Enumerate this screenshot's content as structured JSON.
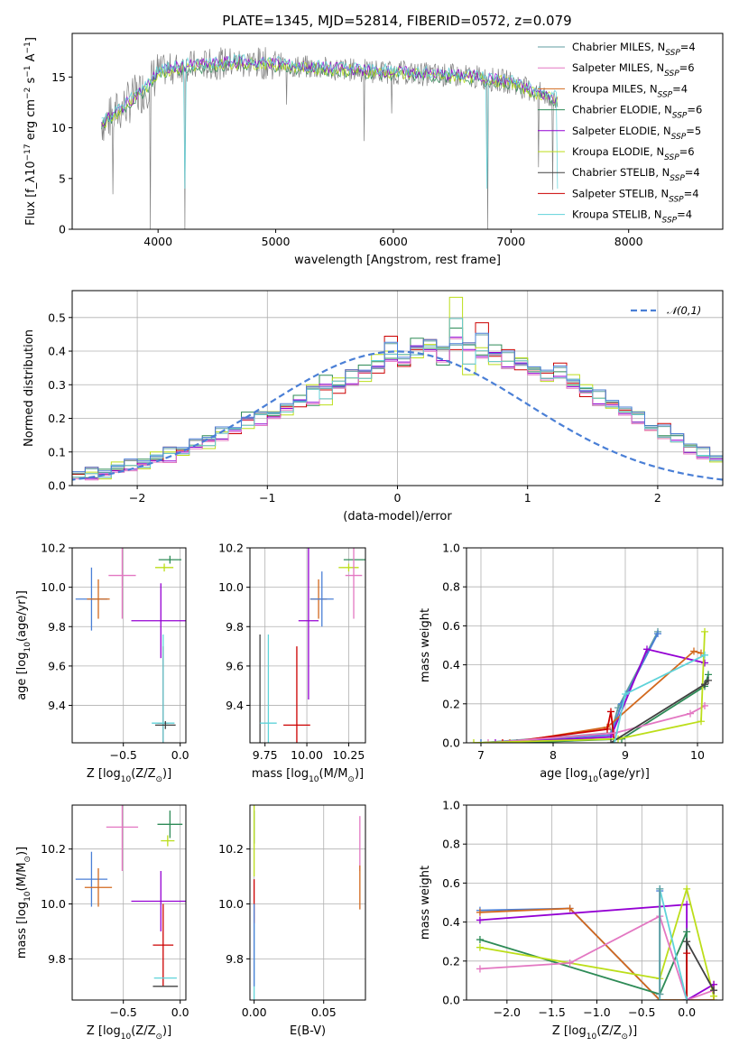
{
  "title": "PLATE=1345, MJD=52814, FIBERID=0572, z=0.079",
  "colors": {
    "chabrier_miles": "#5f9ea0",
    "salpeter_miles": "#e377c2",
    "kroupa_miles": "#d2691e",
    "chabrier_elodie": "#2e8b57",
    "salpeter_elodie": "#9400d3",
    "kroupa_elodie": "#bcde1a",
    "chabrier_stelib": "#404040",
    "salpeter_stelib": "#cc0000",
    "kroupa_stelib": "#5fd3d9",
    "extra_blue": "#4a7fd6",
    "data_gray": "#808080",
    "normal_dashed": "#4a7fd6"
  },
  "chart_data": [
    {
      "id": "spectrum",
      "type": "line",
      "title": "PLATE=1345, MJD=52814, FIBERID=0572, z=0.079",
      "xlabel": "wavelength [Angstrom, rest frame]",
      "ylabel": "Flux [f_λ10^-17 erg cm^-2 s^-1 A^-1]",
      "xlim": [
        3270,
        8800
      ],
      "ylim": [
        0,
        19.3
      ],
      "xticks": [
        "4000",
        "5000",
        "6000",
        "7000",
        "8000"
      ],
      "yticks": [
        "0",
        "5",
        "10",
        "15"
      ],
      "legend_position": "top-right",
      "series": [
        {
          "name": "Chabrier MILES, N_SSP=4"
        },
        {
          "name": "Salpeter MILES, N_SSP=6"
        },
        {
          "name": "Kroupa MILES, N_SSP=4"
        },
        {
          "name": "Chabrier ELODIE, N_SSP=6"
        },
        {
          "name": "Salpeter ELODIE, N_SSP=5"
        },
        {
          "name": "Kroupa ELODIE, N_SSP=6"
        },
        {
          "name": "Chabrier STELIB, N_SSP=4"
        },
        {
          "name": "Salpeter STELIB, N_SSP=4"
        },
        {
          "name": "Kroupa STELIB, N_SSP=4"
        }
      ],
      "continuum_points": {
        "x": [
          3520,
          3600,
          3700,
          3800,
          3900,
          4000,
          4200,
          4400,
          4600,
          4800,
          5000,
          5200,
          5500,
          5800,
          6100,
          6400,
          6700,
          7000,
          7200,
          7400
        ],
        "y": [
          10.5,
          11.0,
          12.0,
          13.0,
          14.0,
          15.5,
          16.0,
          16.2,
          16.4,
          16.4,
          16.3,
          16.0,
          15.8,
          15.6,
          15.4,
          15.2,
          15.0,
          14.5,
          13.5,
          12.8
        ]
      },
      "absorption_lines": [
        {
          "x": 3934,
          "y": 0
        },
        {
          "x": 4227,
          "y": 0
        },
        {
          "x": 6800,
          "y": 0
        },
        {
          "x": 7400,
          "y": 0
        }
      ]
    },
    {
      "id": "residuals",
      "type": "histogram",
      "xlabel": "(data-model)/error",
      "ylabel": "Normed distribution",
      "xlim": [
        -2.5,
        2.5
      ],
      "ylim": [
        0,
        0.58
      ],
      "xticks": [
        "−2",
        "−1",
        "0",
        "1",
        "2"
      ],
      "yticks": [
        "0.0",
        "0.1",
        "0.2",
        "0.3",
        "0.4",
        "0.5"
      ],
      "legend": "𝒩(0,1)",
      "legend_position": "top-right",
      "bin_width": 0.1,
      "bin_start": -2.6,
      "series_base": [
        0.02,
        0.025,
        0.03,
        0.03,
        0.05,
        0.06,
        0.06,
        0.08,
        0.09,
        0.1,
        0.12,
        0.13,
        0.15,
        0.17,
        0.19,
        0.2,
        0.21,
        0.23,
        0.25,
        0.27,
        0.28,
        0.3,
        0.32,
        0.33,
        0.35,
        0.38,
        0.39,
        0.4,
        0.41,
        0.4,
        0.42,
        0.4,
        0.39,
        0.38,
        0.37,
        0.36,
        0.34,
        0.33,
        0.32,
        0.3,
        0.28,
        0.26,
        0.24,
        0.22,
        0.2,
        0.17,
        0.15,
        0.13,
        0.11,
        0.09,
        0.08,
        0.06,
        0.05,
        0.04,
        0.035,
        0.03
      ],
      "series_deltas": [
        [
          0.0,
          0.01,
          -0.005,
          0.02,
          0.0,
          -0.01,
          0.02,
          0.0,
          -0.02,
          0.01,
          0.0,
          0.02,
          -0.01,
          0.0,
          0.03,
          -0.02,
          0.0,
          0.01,
          0.02,
          -0.03,
          0.05,
          0.0,
          -0.02,
          0.03,
          0.02,
          0.0,
          -0.03,
          0.04,
          0.0,
          -0.04,
          0.05,
          0.02,
          0.0,
          0.04,
          -0.02,
          0.02,
          0.0,
          -0.01,
          0.02,
          0.0,
          0.01,
          -0.02,
          0.01,
          0.0,
          -0.01,
          0.01,
          0.0,
          0.02,
          -0.01,
          0.0,
          0.01,
          0.0,
          -0.005,
          0.0,
          0.005,
          0.0
        ],
        [
          0.005,
          0.0,
          0.01,
          -0.01,
          0.02,
          0.0,
          -0.01,
          0.02,
          0.01,
          -0.01,
          0.0,
          -0.02,
          0.01,
          0.0,
          -0.02,
          0.02,
          0.01,
          -0.02,
          0.0,
          0.03,
          -0.04,
          0.02,
          0.0,
          -0.02,
          0.04,
          0.02,
          0.0,
          -0.02,
          0.01,
          0.01,
          0.14,
          -0.07,
          0.02,
          -0.02,
          0.0,
          0.02,
          0.01,
          -0.02,
          0.0,
          0.03,
          0.02,
          0.0,
          -0.01,
          0.0,
          0.02,
          0.0,
          -0.01,
          0.0,
          0.01,
          0.0,
          -0.01,
          0.0,
          0.005,
          0.0,
          0.0,
          0.005
        ],
        [
          -0.01,
          0.005,
          0.02,
          0.0,
          -0.01,
          0.01,
          0.0,
          -0.01,
          0.02,
          0.0,
          0.01,
          0.0,
          0.02,
          -0.02,
          0.0,
          0.01,
          -0.01,
          0.0,
          -0.02,
          0.02,
          0.0,
          -0.03,
          0.02,
          0.0,
          -0.02,
          0.06,
          -0.04,
          0.0,
          0.02,
          0.0,
          -0.02,
          0.02,
          0.09,
          0.0,
          0.03,
          -0.02,
          0.0,
          0.0,
          0.04,
          0.0,
          -0.02,
          0.02,
          0.0,
          0.0,
          0.01,
          -0.01,
          0.03,
          0.02,
          0.0,
          0.02,
          -0.01,
          0.01,
          0.0,
          0.0,
          -0.005,
          0.0
        ]
      ],
      "normal_curve": {
        "mean": 0,
        "sigma": 1
      }
    },
    {
      "id": "age_vs_Z",
      "type": "scatter",
      "xlabel": "Z [log10(Z/Z⊙)]",
      "ylabel": "age  [log10(age/yr)]",
      "xlim": [
        -0.95,
        0.05
      ],
      "ylim": [
        9.21,
        10.2
      ],
      "xticks": [
        "−0.5",
        "0.0"
      ],
      "yticks": [
        "9.4",
        "9.6",
        "9.8",
        "10.0",
        "10.2"
      ],
      "points": [
        {
          "c": "extra_blue",
          "x": -0.78,
          "y": 9.94,
          "xerr": 0.14,
          "yerr": 0.16
        },
        {
          "c": "kroupa_miles",
          "x": -0.72,
          "y": 9.94,
          "xerr": 0.1,
          "yerr": 0.1
        },
        {
          "c": "salpeter_miles",
          "x": -0.51,
          "y": 10.06,
          "xerr": 0.12,
          "yerr": 0.22
        },
        {
          "c": "salpeter_elodie",
          "x": -0.17,
          "y": 9.83,
          "xerr": 0.26,
          "yerr": 0.19
        },
        {
          "c": "chabrier_elodie",
          "x": -0.09,
          "y": 10.14,
          "xerr": 0.1,
          "yerr": 0.02
        },
        {
          "c": "kroupa_elodie",
          "x": -0.14,
          "y": 10.1,
          "xerr": 0.08,
          "yerr": 0.02
        },
        {
          "c": "salpeter_stelib",
          "x": -0.15,
          "y": 9.31,
          "xerr": 0.05,
          "yerr": 0.39
        },
        {
          "c": "kroupa_stelib",
          "x": -0.15,
          "y": 9.31,
          "xerr": 0.1,
          "yerr": 0.45
        },
        {
          "c": "chabrier_stelib",
          "x": -0.13,
          "y": 9.3,
          "xerr": 0.09,
          "yerr": 0.02
        }
      ]
    },
    {
      "id": "age_vs_mass",
      "type": "scatter",
      "xlabel": "mass [log10(M/M⊙)]",
      "ylabel": "",
      "xlim": [
        9.66,
        10.35
      ],
      "ylim": [
        9.21,
        10.2
      ],
      "xticks": [
        "9.75",
        "10.00",
        "10.25"
      ],
      "yticks": [
        "9.4",
        "9.6",
        "9.8",
        "10.0",
        "10.2"
      ],
      "points": [
        {
          "c": "chabrier_stelib",
          "x": 9.72,
          "y": 9.31,
          "xerr": 0.0,
          "yerr": 0.45
        },
        {
          "c": "kroupa_stelib",
          "x": 9.77,
          "y": 9.31,
          "xerr": 0.05,
          "yerr": 0.45
        },
        {
          "c": "salpeter_stelib",
          "x": 9.94,
          "y": 9.3,
          "xerr": 0.08,
          "yerr": 0.4
        },
        {
          "c": "salpeter_elodie",
          "x": 10.01,
          "y": 9.83,
          "xerr": 0.06,
          "yerr": 0.4
        },
        {
          "c": "kroupa_miles",
          "x": 10.07,
          "y": 9.94,
          "xerr": 0.05,
          "yerr": 0.1
        },
        {
          "c": "extra_blue",
          "x": 10.09,
          "y": 9.94,
          "xerr": 0.07,
          "yerr": 0.14
        },
        {
          "c": "chabrier_elodie",
          "x": 10.29,
          "y": 10.14,
          "xerr": 0.07,
          "yerr": 0.0
        },
        {
          "c": "kroupa_elodie",
          "x": 10.25,
          "y": 10.1,
          "xerr": 0.06,
          "yerr": 0.02
        },
        {
          "c": "salpeter_miles",
          "x": 10.28,
          "y": 10.06,
          "xerr": 0.05,
          "yerr": 0.22
        }
      ]
    },
    {
      "id": "massweight_vs_age",
      "type": "line",
      "xlabel": "age  [log10(age/yr)]",
      "ylabel": "mass weight",
      "xlim": [
        6.8,
        10.35
      ],
      "ylim": [
        0,
        1.0
      ],
      "xticks": [
        "7",
        "8",
        "9",
        "10"
      ],
      "yticks": [
        "0.0",
        "0.2",
        "0.4",
        "0.6",
        "0.8",
        "1.0"
      ],
      "series": [
        {
          "c": "chabrier_miles",
          "x": [
            7.0,
            8.8,
            8.9,
            9.45
          ],
          "y": [
            0.0,
            0.05,
            0.18,
            0.57
          ]
        },
        {
          "c": "extra_blue",
          "x": [
            7.0,
            8.8,
            8.95,
            9.45
          ],
          "y": [
            0.0,
            0.04,
            0.2,
            0.56
          ]
        },
        {
          "c": "salpeter_elodie",
          "x": [
            7.2,
            8.8,
            9.3,
            10.1
          ],
          "y": [
            0.0,
            0.03,
            0.48,
            0.41
          ]
        },
        {
          "c": "kroupa_miles",
          "x": [
            7.4,
            8.75,
            9.95,
            10.05
          ],
          "y": [
            0.0,
            0.08,
            0.47,
            0.46
          ]
        },
        {
          "c": "salpeter_stelib",
          "x": [
            7.3,
            8.75,
            8.8,
            8.85
          ],
          "y": [
            0.0,
            0.07,
            0.16,
            0.0
          ]
        },
        {
          "c": "chabrier_elodie",
          "x": [
            7.5,
            8.95,
            10.1,
            10.15
          ],
          "y": [
            0.0,
            0.02,
            0.29,
            0.35
          ]
        },
        {
          "c": "salpeter_miles",
          "x": [
            7.1,
            8.85,
            9.9,
            10.1
          ],
          "y": [
            0.0,
            0.05,
            0.15,
            0.19
          ]
        },
        {
          "c": "kroupa_elodie",
          "x": [
            6.9,
            8.9,
            10.05,
            10.1
          ],
          "y": [
            0.0,
            0.02,
            0.11,
            0.57
          ]
        },
        {
          "c": "chabrier_stelib",
          "x": [
            8.8,
            10.1,
            10.15
          ],
          "y": [
            0.0,
            0.3,
            0.32
          ]
        },
        {
          "c": "kroupa_stelib",
          "x": [
            8.85,
            9.0,
            10.1
          ],
          "y": [
            0.0,
            0.25,
            0.45
          ]
        }
      ]
    },
    {
      "id": "mass_vs_Z",
      "type": "scatter",
      "xlabel": "Z [log10(Z/Z⊙)]",
      "ylabel": "mass [log10(M/M⊙)]",
      "xlim": [
        -0.95,
        0.05
      ],
      "ylim": [
        9.65,
        10.36
      ],
      "xticks": [
        "−0.5",
        "0.0"
      ],
      "yticks": [
        "9.8",
        "10.0",
        "10.2"
      ],
      "points": [
        {
          "c": "extra_blue",
          "x": -0.78,
          "y": 10.09,
          "xerr": 0.14,
          "yerr": 0.1
        },
        {
          "c": "kroupa_miles",
          "x": -0.72,
          "y": 10.06,
          "xerr": 0.12,
          "yerr": 0.07
        },
        {
          "c": "salpeter_miles",
          "x": -0.51,
          "y": 10.28,
          "xerr": 0.14,
          "yerr": 0.16
        },
        {
          "c": "salpeter_elodie",
          "x": -0.17,
          "y": 10.01,
          "xerr": 0.26,
          "yerr": 0.11
        },
        {
          "c": "chabrier_elodie",
          "x": -0.09,
          "y": 10.29,
          "xerr": 0.11,
          "yerr": 0.05
        },
        {
          "c": "kroupa_elodie",
          "x": -0.11,
          "y": 10.23,
          "xerr": 0.06,
          "yerr": 0.02
        },
        {
          "c": "salpeter_stelib",
          "x": -0.15,
          "y": 9.85,
          "xerr": 0.09,
          "yerr": 0.15
        },
        {
          "c": "kroupa_stelib",
          "x": -0.13,
          "y": 9.73,
          "xerr": 0.1,
          "yerr": 0.0
        },
        {
          "c": "chabrier_stelib",
          "x": -0.13,
          "y": 9.7,
          "xerr": 0.11,
          "yerr": 0.0
        }
      ]
    },
    {
      "id": "mass_vs_EBV",
      "type": "scatter",
      "xlabel": "E(B-V)",
      "ylabel": "",
      "xlim": [
        -0.003,
        0.08
      ],
      "ylim": [
        9.65,
        10.36
      ],
      "xticks": [
        "0.00",
        "0.05"
      ],
      "yticks": [
        "9.8",
        "10.0",
        "10.2"
      ],
      "points": [
        {
          "c": "chabrier_elodie",
          "x": 0.0,
          "y": 10.28,
          "xerr": 0.0,
          "yerr": 0.06
        },
        {
          "c": "kroupa_elodie",
          "x": 0.0,
          "y": 10.23,
          "xerr": 0.0,
          "yerr": 0.13
        },
        {
          "c": "salpeter_stelib",
          "x": 0.0,
          "y": 10.01,
          "xerr": 0.0,
          "yerr": 0.08
        },
        {
          "c": "kroupa_stelib",
          "x": 0.0,
          "y": 9.73,
          "xerr": 0.0,
          "yerr": 0.2
        },
        {
          "c": "extra_blue",
          "x": 0.0,
          "y": 9.85,
          "xerr": 0.0,
          "yerr": 0.15
        },
        {
          "c": "salpeter_miles",
          "x": 0.076,
          "y": 10.22,
          "xerr": 0.0,
          "yerr": 0.1
        },
        {
          "c": "kroupa_miles",
          "x": 0.076,
          "y": 10.06,
          "xerr": 0.0,
          "yerr": 0.08
        }
      ]
    },
    {
      "id": "massweight_vs_Z",
      "type": "line",
      "xlabel": "Z [log10(Z/Z⊙)]",
      "ylabel": "mass weight",
      "xlim": [
        -2.45,
        0.4
      ],
      "ylim": [
        0,
        1.0
      ],
      "xticks": [
        "−2.0",
        "−1.5",
        "−1.0",
        "−0.5",
        "0.0"
      ],
      "yticks": [
        "0.0",
        "0.2",
        "0.4",
        "0.6",
        "0.8",
        "1.0"
      ],
      "series": [
        {
          "c": "extra_blue",
          "x": [
            -2.3,
            -1.3,
            -0.3,
            -0.3
          ],
          "y": [
            0.46,
            0.47,
            0.0,
            0.56
          ]
        },
        {
          "c": "kroupa_miles",
          "x": [
            -2.3,
            -1.3,
            -0.3,
            0.3,
            0.3
          ],
          "y": [
            0.45,
            0.47,
            0.0,
            0.0,
            0.08
          ]
        },
        {
          "c": "salpeter_elodie",
          "x": [
            -2.3,
            0.0,
            0.0,
            0.3
          ],
          "y": [
            0.41,
            0.49,
            0.0,
            0.08
          ]
        },
        {
          "c": "chabrier_elodie",
          "x": [
            -2.3,
            -0.3,
            0.0,
            0.0
          ],
          "y": [
            0.31,
            0.03,
            0.35,
            0.0
          ]
        },
        {
          "c": "kroupa_elodie",
          "x": [
            -2.3,
            -0.3,
            0.0,
            0.3
          ],
          "y": [
            0.27,
            0.11,
            0.57,
            0.02
          ]
        },
        {
          "c": "salpeter_miles",
          "x": [
            -2.3,
            -1.3,
            -0.3,
            0.0,
            0.3
          ],
          "y": [
            0.16,
            0.19,
            0.43,
            0.0,
            0.05
          ]
        },
        {
          "c": "chabrier_stelib",
          "x": [
            0.0,
            0.0,
            0.3
          ],
          "y": [
            0.0,
            0.3,
            0.05
          ]
        },
        {
          "c": "salpeter_stelib",
          "x": [
            0.0,
            0.0
          ],
          "y": [
            0.0,
            0.24
          ]
        },
        {
          "c": "kroupa_stelib",
          "x": [
            -0.3,
            -0.3,
            0.0
          ],
          "y": [
            0.0,
            0.57,
            0.0
          ]
        },
        {
          "c": "chabrier_miles",
          "x": [
            -0.3,
            -0.3
          ],
          "y": [
            0.03,
            0.57
          ]
        }
      ]
    }
  ]
}
